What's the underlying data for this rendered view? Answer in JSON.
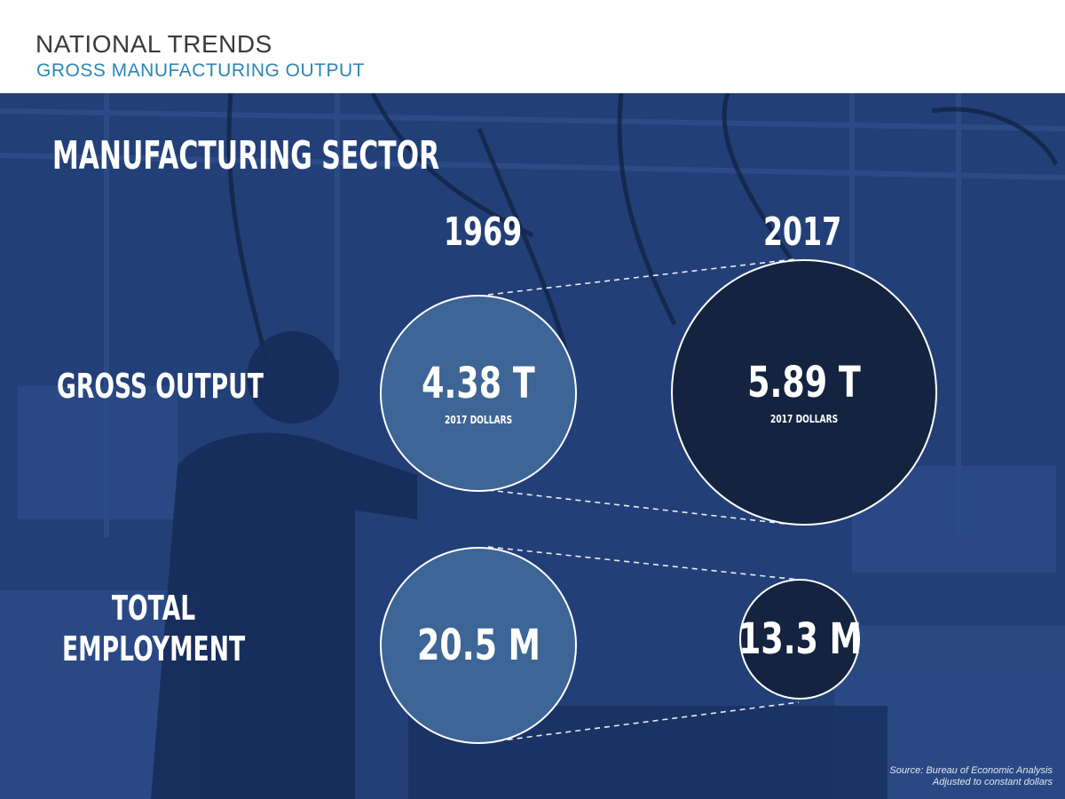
{
  "header": {
    "title": "NATIONAL TRENDS",
    "subtitle": "GROSS MANUFACTURING OUTPUT"
  },
  "main": {
    "heading": "MANUFACTURING SECTOR",
    "years": [
      "1969",
      "2017"
    ],
    "rows": [
      {
        "label_lines": [
          "GROSS OUTPUT"
        ],
        "values": [
          {
            "value": "4.38 T",
            "unit": "2017 DOLLARS"
          },
          {
            "value": "5.89 T",
            "unit": "2017 DOLLARS"
          }
        ]
      },
      {
        "label_lines": [
          "TOTAL",
          "EMPLOYMENT"
        ],
        "values": [
          {
            "value": "20.5 M"
          },
          {
            "value": "13.3 M"
          }
        ]
      }
    ]
  },
  "footer": {
    "source_line1": "Source: Bureau of Economic Analysis",
    "source_line2": "Adjusted to constant dollars"
  },
  "colors": {
    "overlay_blue": "#1f3f7a",
    "circle_1969": "#3d6596",
    "circle_2017": "#14233f",
    "subtitle_accent": "#2a86b8"
  }
}
